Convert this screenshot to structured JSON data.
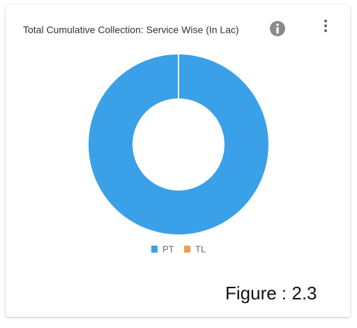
{
  "chart_data": {
    "type": "pie",
    "title": "Total Cumulative Collection: Service Wise (In Lac)",
    "categories": [
      "PT",
      "TL"
    ],
    "values": [
      100,
      0
    ],
    "colors": [
      "#3aa0e8",
      "#f39a55"
    ]
  },
  "figure_label": "Figure : 2.3"
}
